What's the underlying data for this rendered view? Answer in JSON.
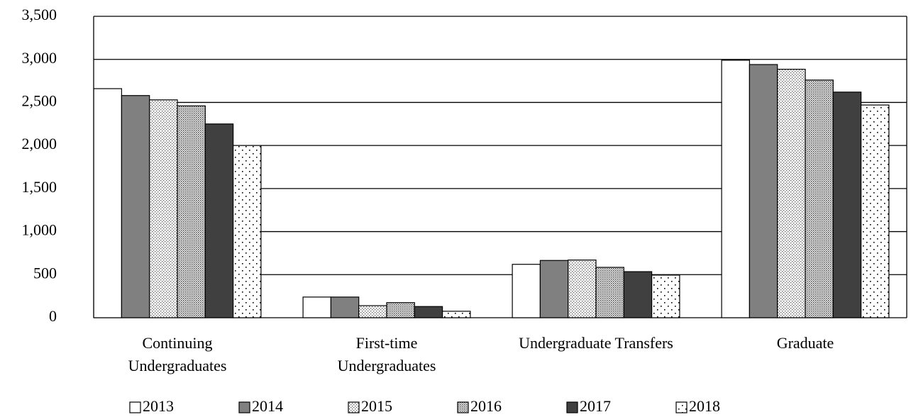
{
  "chart_data": {
    "type": "bar",
    "categories": [
      "Continuing\nUndergraduates",
      "First-time\nUndergraduates",
      "Undergraduate Transfers",
      "Graduate"
    ],
    "series": [
      {
        "name": "2013",
        "color": "#ffffff",
        "values": [
          2660,
          240,
          620,
          2990
        ]
      },
      {
        "name": "2014",
        "color": "#808080",
        "values": [
          2580,
          240,
          665,
          2940
        ]
      },
      {
        "name": "2015",
        "color": "#ffffff",
        "pattern": "fine-dots",
        "values": [
          2530,
          140,
          670,
          2885
        ]
      },
      {
        "name": "2016",
        "color": "#ffffff",
        "pattern": "dense-dots",
        "values": [
          2460,
          175,
          585,
          2760
        ]
      },
      {
        "name": "2017",
        "color": "#404040",
        "values": [
          2250,
          130,
          535,
          2620
        ]
      },
      {
        "name": "2018",
        "color": "#ffffff",
        "pattern": "sparse-dots",
        "values": [
          2000,
          75,
          495,
          2470
        ]
      }
    ],
    "ylim": [
      0,
      3500
    ],
    "yticks": [
      0,
      500,
      {
        "value": 1000,
        "label": "1,000"
      },
      {
        "value": 1500,
        "label": "1,500"
      },
      {
        "value": 2000,
        "label": "2,000"
      },
      {
        "value": 2500,
        "label": "2,500"
      },
      {
        "value": 3000,
        "label": "3,000"
      },
      {
        "value": 3500,
        "label": "3,500"
      }
    ],
    "grid": true
  }
}
